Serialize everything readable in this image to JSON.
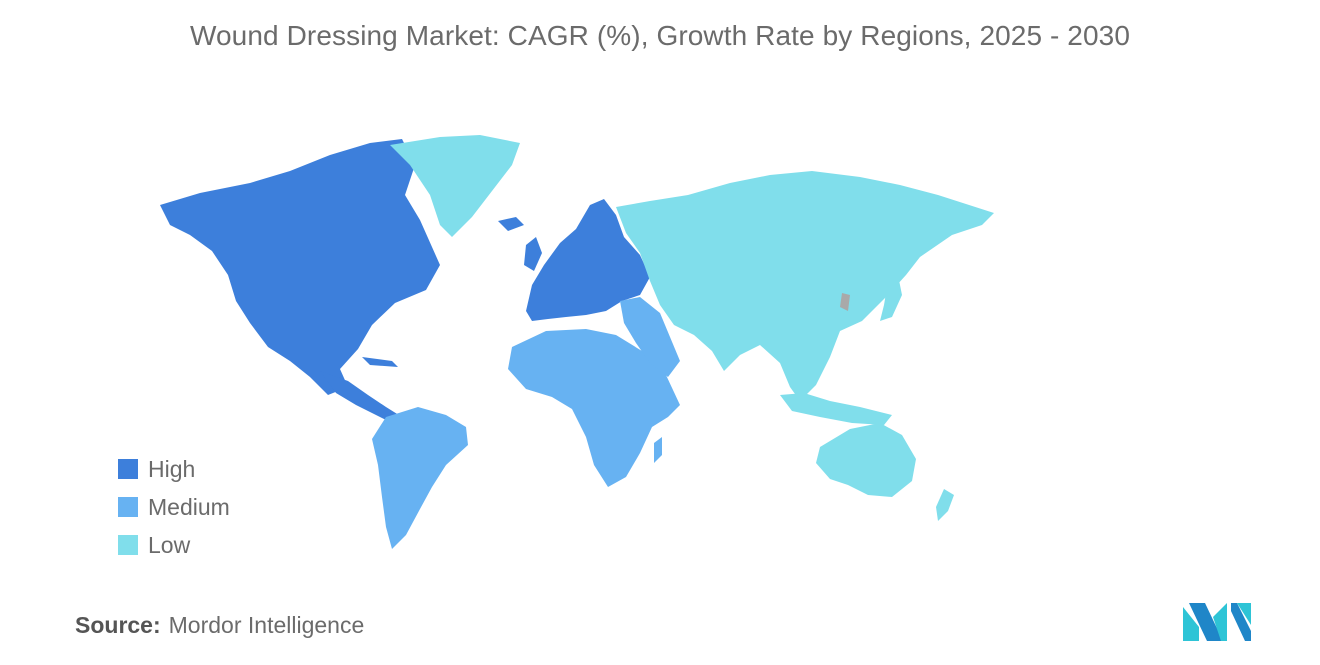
{
  "title": "Wound Dressing Market: CAGR (%), Growth Rate by Regions, 2025 - 2030",
  "legend": [
    {
      "label": "High",
      "color": "#3d7fdb"
    },
    {
      "label": "Medium",
      "color": "#67b2f2"
    },
    {
      "label": "Low",
      "color": "#80deeb"
    }
  ],
  "regions": {
    "north_america": "High",
    "europe": "High",
    "south_america": "Medium",
    "africa": "Medium",
    "middle_east": "Medium",
    "asia": "Low",
    "russia": "Low",
    "greenland": "Low",
    "oceania": "Low"
  },
  "source": {
    "label": "Source:",
    "value": "Mordor Intelligence"
  },
  "logo": "mordor-intelligence-logo"
}
